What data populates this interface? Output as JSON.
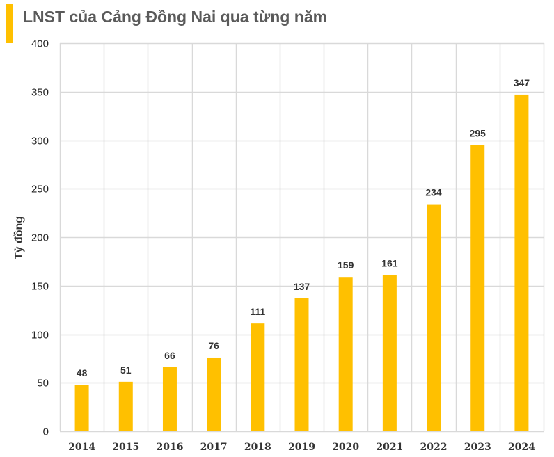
{
  "chart_data": {
    "type": "bar",
    "title": "LNST của Cảng Đồng Nai qua từng năm",
    "xlabel": "",
    "ylabel": "Tỷ đồng",
    "categories": [
      "2014",
      "2015",
      "2016",
      "2017",
      "2018",
      "2019",
      "2020",
      "2021",
      "2022",
      "2023",
      "2024"
    ],
    "values": [
      48,
      51,
      66,
      76,
      111,
      137,
      159,
      161,
      234,
      295,
      347
    ],
    "ylim": [
      0,
      400
    ],
    "yticks": [
      0,
      50,
      100,
      150,
      200,
      250,
      300,
      350,
      400
    ],
    "grid": true,
    "legend": "none",
    "data_labels": true,
    "colors": {
      "bar": "#FFC000",
      "accent": "#FFC000",
      "grid": "#D9D9D9"
    }
  }
}
